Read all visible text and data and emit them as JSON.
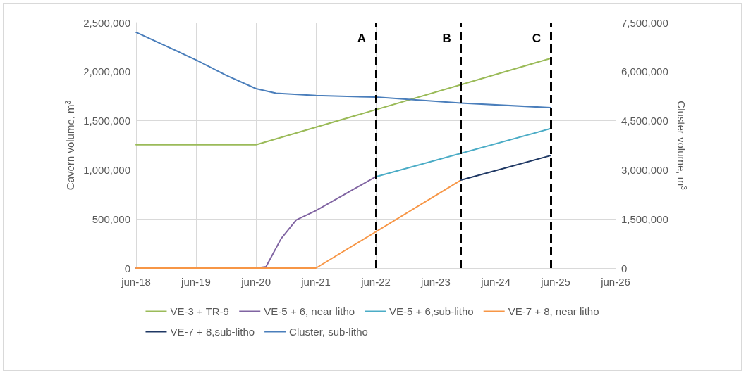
{
  "chart_data": {
    "type": "line",
    "xlabel": null,
    "ylabel": "Cavern volume, m$^{3}$",
    "y2label": "Cluster volume, m$^{3}$",
    "xlim": [
      "2018-06",
      "2026-06"
    ],
    "xticks": [
      {
        "value": "2018-06",
        "label": "jun-18"
      },
      {
        "value": "2019-06",
        "label": "jun-19"
      },
      {
        "value": "2020-06",
        "label": "jun-20"
      },
      {
        "value": "2021-06",
        "label": "jun-21"
      },
      {
        "value": "2022-06",
        "label": "jun-22"
      },
      {
        "value": "2023-06",
        "label": "jun-23"
      },
      {
        "value": "2024-06",
        "label": "jun-24"
      },
      {
        "value": "2025-06",
        "label": "jun-25"
      },
      {
        "value": "2026-06",
        "label": "jun-26"
      }
    ],
    "ylim": [
      0,
      2500000
    ],
    "yticks": [
      0,
      {
        "value": 500000,
        "label": "500,000"
      },
      {
        "value": 1000000,
        "label": "1,000,000"
      },
      {
        "value": 1500000,
        "label": "1,500,000"
      },
      {
        "value": 2000000,
        "label": "2,000,000"
      },
      {
        "value": 2500000,
        "label": "2,500,000"
      }
    ],
    "y2lim": [
      0,
      7500000
    ],
    "y2ticks": [
      0,
      {
        "value": 1500000,
        "label": "1,500,000"
      },
      {
        "value": 3000000,
        "label": "3,000,000"
      },
      {
        "value": 4500000,
        "label": "4,500,000"
      },
      {
        "value": 6000000,
        "label": "6,000,000"
      },
      {
        "value": 7500000,
        "label": "7,500,000"
      }
    ],
    "series": [
      {
        "name": "VE-3 + TR-9",
        "color": "#9bbb59",
        "x": [
          "2018-06",
          "2020-06",
          "2025-05"
        ],
        "values": [
          1255000,
          1255000,
          2135000
        ]
      },
      {
        "name": "VE-5 + 6, near litho",
        "color": "#8064a2",
        "x": [
          "2018-06",
          "2020-06",
          "2020-08",
          "2020-11",
          "2021-02",
          "2021-06",
          "2022-06"
        ],
        "values": [
          0,
          0,
          15000,
          300000,
          490000,
          585000,
          930000
        ]
      },
      {
        "name": "VE-5 + 6,sub-litho",
        "color": "#4bacc6",
        "x": [
          "2022-06",
          "2025-05"
        ],
        "values": [
          930000,
          1420000
        ]
      },
      {
        "name": "VE-7 + 8, near litho",
        "color": "#f79646",
        "x": [
          "2018-06",
          "2021-06",
          "2023-11"
        ],
        "values": [
          0,
          0,
          895000
        ]
      },
      {
        "name": "VE-7 + 8,sub-litho",
        "color": "#1f3864",
        "x": [
          "2023-11",
          "2025-05"
        ],
        "values": [
          895000,
          1145000
        ]
      },
      {
        "name": "Cluster, sub-litho",
        "color": "#4a7ebb",
        "axis": "y2",
        "x": [
          "2018-06",
          "2019-06",
          "2019-12",
          "2020-06",
          "2020-10",
          "2021-06",
          "2022-06",
          "2023-11",
          "2025-05"
        ],
        "values": [
          7200000,
          6360000,
          5890000,
          5480000,
          5340000,
          5270000,
          5220000,
          5040000,
          4900000
        ]
      }
    ],
    "ref_lines": [
      {
        "axis": "x",
        "value": "2022-06",
        "label": "A",
        "color": "#000000",
        "line_style": "dashed"
      },
      {
        "axis": "x",
        "value": "2023-11",
        "label": "B",
        "color": "#000000",
        "line_style": "dashed"
      },
      {
        "axis": "x",
        "value": "2025-05",
        "label": "C",
        "color": "#000000",
        "line_style": "dashed"
      }
    ],
    "grid": true,
    "legend": "bottom",
    "marker": "none",
    "line_style": "solid"
  }
}
